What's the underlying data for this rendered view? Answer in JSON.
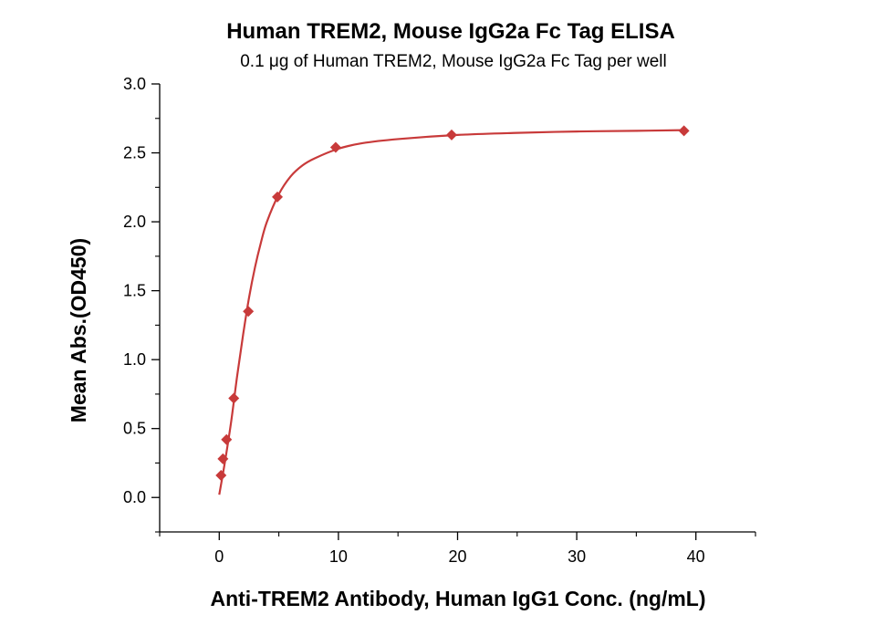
{
  "chart_data": {
    "type": "scatter",
    "title": "Human TREM2, Mouse IgG2a Fc Tag ELISA",
    "subtitle": "0.1 μg of Human TREM2, Mouse IgG2a Fc Tag per well",
    "xlabel": "Anti-TREM2 Antibody, Human IgG1 Conc. (ng/mL)",
    "ylabel": "Mean Abs.(OD450)",
    "xlim": [
      -5,
      45
    ],
    "ylim": [
      -0.25,
      3.0
    ],
    "x_ticks": [
      0,
      10,
      20,
      30,
      40
    ],
    "x_tick_labels": [
      "0",
      "10",
      "20",
      "30",
      "40"
    ],
    "y_ticks": [
      0.0,
      0.5,
      1.0,
      1.5,
      2.0,
      2.5,
      3.0
    ],
    "y_tick_labels": [
      "0.0",
      "0.5",
      "1.0",
      "1.5",
      "2.0",
      "2.5",
      "3.0"
    ],
    "grid": false,
    "marker": "diamond",
    "color": "#c83a3a",
    "points": [
      {
        "x": 0.15,
        "y": 0.16
      },
      {
        "x": 0.31,
        "y": 0.28
      },
      {
        "x": 0.61,
        "y": 0.42
      },
      {
        "x": 1.22,
        "y": 0.72
      },
      {
        "x": 2.44,
        "y": 1.35
      },
      {
        "x": 4.88,
        "y": 2.18
      },
      {
        "x": 9.77,
        "y": 2.54
      },
      {
        "x": 19.5,
        "y": 2.63
      },
      {
        "x": 39.0,
        "y": 2.66
      }
    ],
    "fit_curve": [
      {
        "x": 0.0,
        "y": 0.02
      },
      {
        "x": 0.5,
        "y": 0.27
      },
      {
        "x": 1.0,
        "y": 0.55
      },
      {
        "x": 1.5,
        "y": 0.88
      },
      {
        "x": 2.0,
        "y": 1.18
      },
      {
        "x": 2.5,
        "y": 1.45
      },
      {
        "x": 3.0,
        "y": 1.67
      },
      {
        "x": 3.5,
        "y": 1.85
      },
      {
        "x": 4.0,
        "y": 2.0
      },
      {
        "x": 5.0,
        "y": 2.2
      },
      {
        "x": 6.0,
        "y": 2.33
      },
      {
        "x": 7.0,
        "y": 2.41
      },
      {
        "x": 8.0,
        "y": 2.46
      },
      {
        "x": 10.0,
        "y": 2.53
      },
      {
        "x": 12.0,
        "y": 2.57
      },
      {
        "x": 15.0,
        "y": 2.6
      },
      {
        "x": 20.0,
        "y": 2.63
      },
      {
        "x": 25.0,
        "y": 2.645
      },
      {
        "x": 30.0,
        "y": 2.655
      },
      {
        "x": 35.0,
        "y": 2.66
      },
      {
        "x": 39.0,
        "y": 2.665
      }
    ]
  }
}
